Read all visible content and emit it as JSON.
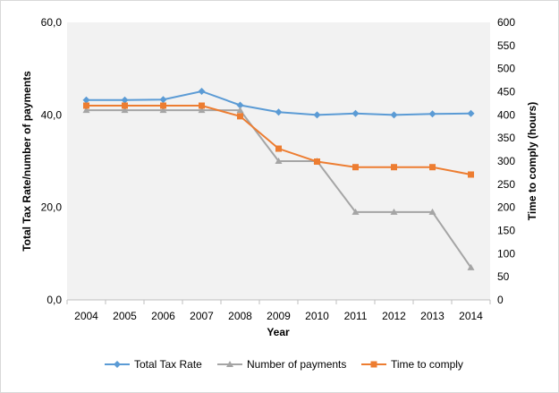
{
  "chart_data": {
    "type": "line",
    "title": "",
    "xlabel": "Year",
    "ylabel_left": "Total Tax Rate/number of payments",
    "ylabel_right": "Time to comply (hours)",
    "categories": [
      "2004",
      "2005",
      "2006",
      "2007",
      "2008",
      "2009",
      "2010",
      "2011",
      "2012",
      "2013",
      "2014"
    ],
    "y_left": {
      "range": [
        0,
        60
      ],
      "ticks": [
        "0,0",
        "20,0",
        "40,0",
        "60,0"
      ],
      "tick_values": [
        0,
        20,
        40,
        60
      ]
    },
    "y_right": {
      "range": [
        0,
        600
      ],
      "ticks": [
        0,
        50,
        100,
        150,
        200,
        250,
        300,
        350,
        400,
        450,
        500,
        550,
        600
      ]
    },
    "series": [
      {
        "name": "Total Tax Rate",
        "axis": "left",
        "color": "#5b9bd5",
        "marker": "diamond",
        "values": [
          43.2,
          43.2,
          43.3,
          45.1,
          42.1,
          40.6,
          40.0,
          40.3,
          40.0,
          40.2,
          40.3
        ]
      },
      {
        "name": "Number of payments",
        "axis": "left",
        "color": "#a5a5a5",
        "marker": "triangle",
        "values": [
          41,
          41,
          41,
          41,
          41,
          30,
          30,
          19,
          19,
          19,
          7
        ]
      },
      {
        "name": "Time to comply",
        "axis": "right",
        "color": "#ed7d31",
        "marker": "square",
        "values": [
          420,
          420,
          420,
          420,
          397,
          327,
          299,
          287,
          287,
          287,
          271
        ]
      }
    ],
    "legend": "bottom",
    "grid": false
  }
}
